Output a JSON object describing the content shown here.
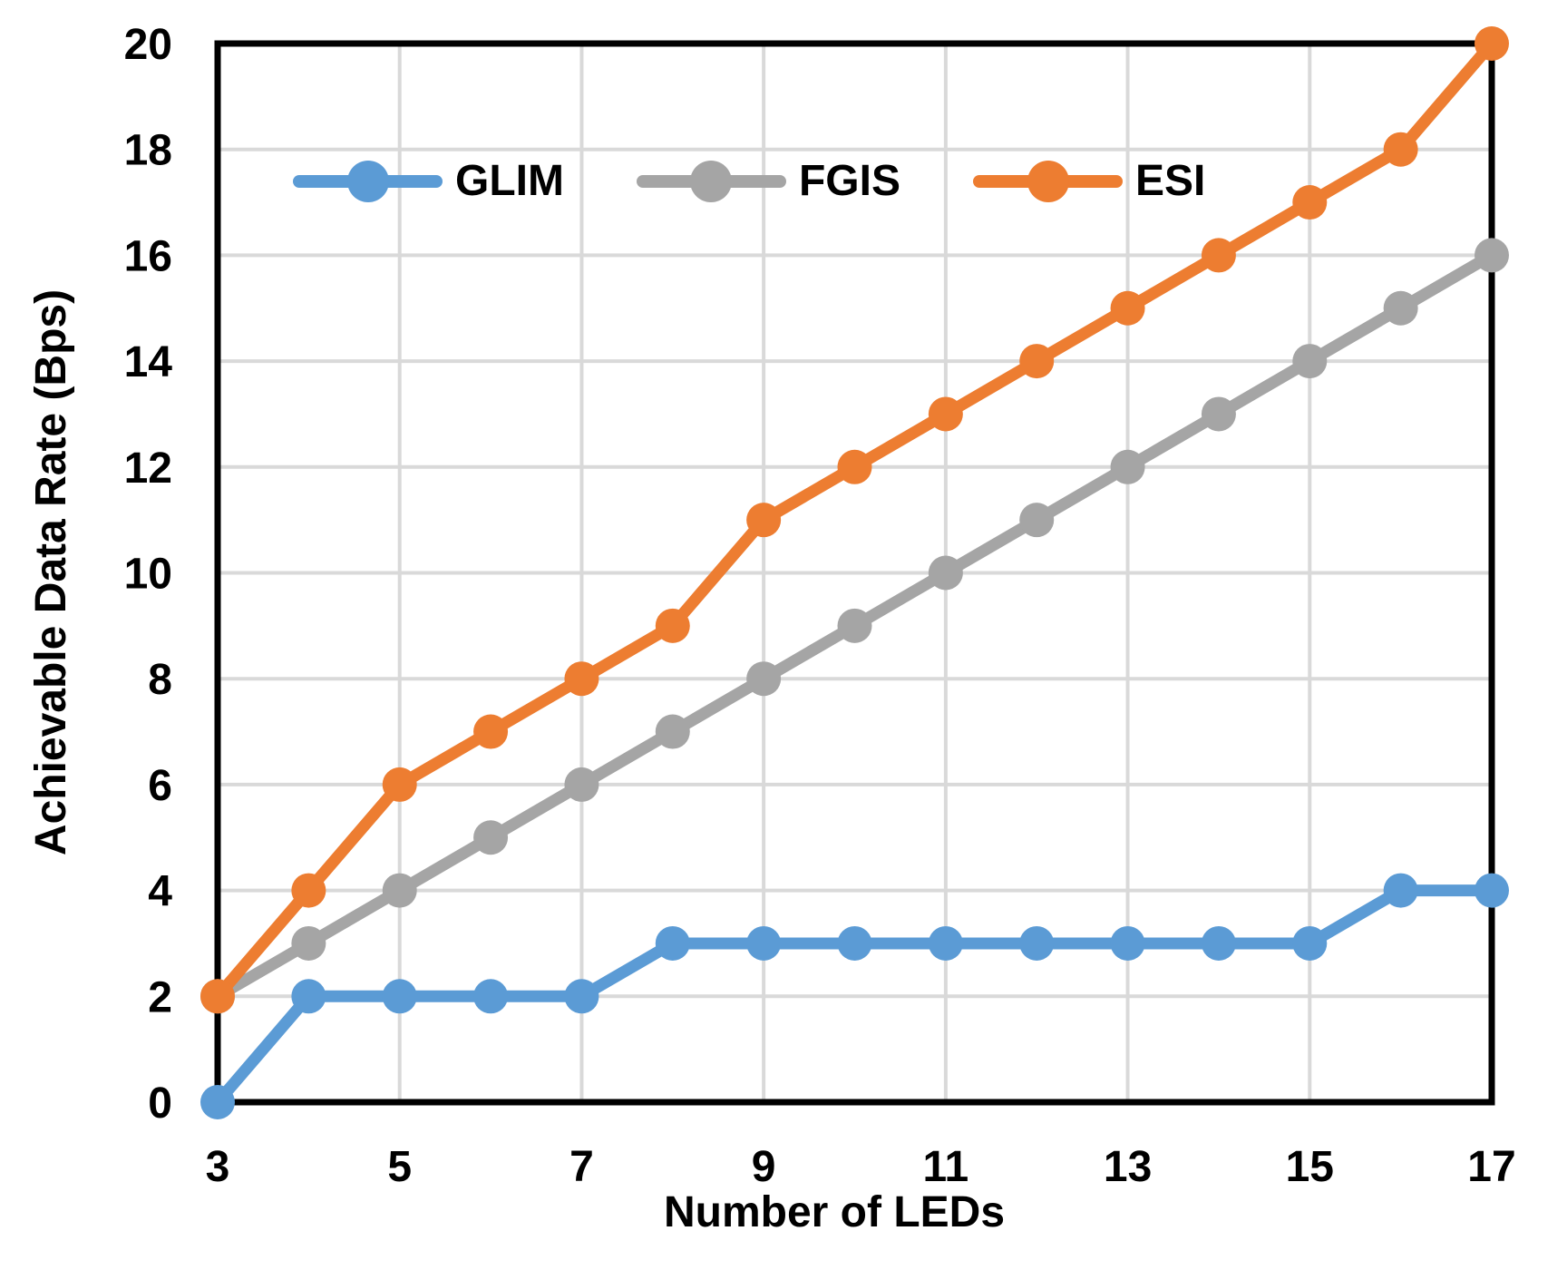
{
  "chart_data": {
    "type": "line",
    "title": "",
    "xlabel": "Number of LEDs",
    "ylabel": "Achievable Data Rate (Bps)",
    "x": [
      3,
      4,
      5,
      6,
      7,
      8,
      9,
      10,
      11,
      12,
      13,
      14,
      15,
      16,
      17
    ],
    "x_ticks": [
      3,
      5,
      7,
      9,
      11,
      13,
      15,
      17
    ],
    "y_ticks": [
      0,
      2,
      4,
      6,
      8,
      10,
      12,
      14,
      16,
      18,
      20
    ],
    "xlim": [
      3,
      17
    ],
    "ylim": [
      0,
      20
    ],
    "grid": true,
    "legend_position": "top-inside-horizontal",
    "frame_color": "#000000",
    "gridline_color": "#d9d9d9",
    "series": [
      {
        "name": "GLIM",
        "color": "#5B9BD5",
        "values": [
          0,
          2,
          2,
          2,
          2,
          3,
          3,
          3,
          3,
          3,
          3,
          3,
          3,
          4,
          4
        ]
      },
      {
        "name": "FGIS",
        "color": "#A5A5A5",
        "values": [
          2,
          3,
          4,
          5,
          6,
          7,
          8,
          9,
          10,
          11,
          12,
          13,
          14,
          15,
          16
        ]
      },
      {
        "name": "ESI",
        "color": "#ED7D31",
        "values": [
          2,
          4,
          6,
          7,
          8,
          9,
          11,
          12,
          13,
          14,
          15,
          16,
          17,
          18,
          20
        ]
      }
    ]
  }
}
